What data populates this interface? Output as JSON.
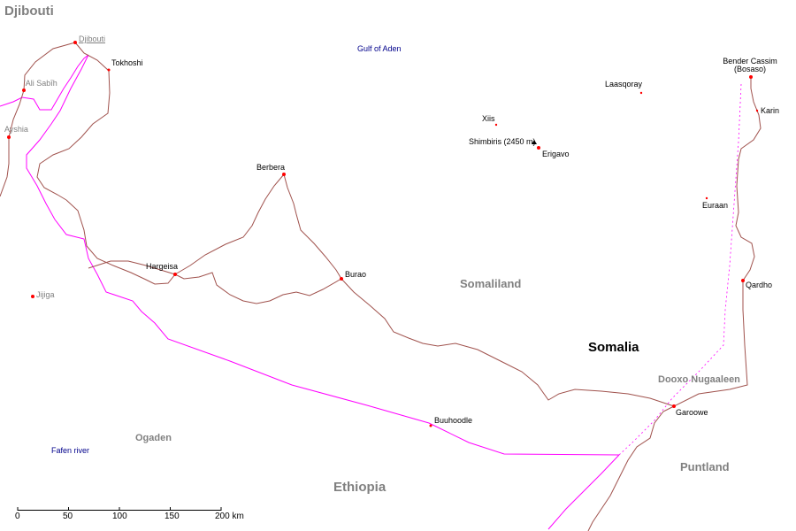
{
  "countries": {
    "djibouti": "Djibouti",
    "somalia": "Somalia",
    "ethiopia": "Ethiopia"
  },
  "regions": {
    "somaliland": "Somaliland",
    "puntland": "Puntland",
    "dooxo": "Dooxo Nugaaleen",
    "ogaden": "Ogaden"
  },
  "water": {
    "gulf": "Gulf of Aden",
    "fafen": "Fafen river"
  },
  "cities": {
    "djibouti": "Djibouti",
    "tokhoshi": "Tokhoshi",
    "ali_sabih": "'Ali Sabīh",
    "ayshia": "Ayshia",
    "berbera": "Berbera",
    "hargeisa": "Hargeisa",
    "burao": "Burao",
    "jijiga": "Jijiga",
    "buuhoodle": "Buuhoodle",
    "xiis": "Xiis",
    "shimbiris": "Shimbiris (2450 m)",
    "erigavo": "Erigavo",
    "laasqoray": "Laasqoray",
    "bosaso_line1": "Bender Cassim",
    "bosaso_line2": "(Bosaso)",
    "karin": "Karin",
    "euraan": "Euraan",
    "qardho": "Qardho",
    "garoowe": "Garoowe"
  },
  "scale": {
    "ticks": [
      "0",
      "50",
      "100",
      "150",
      "200 km"
    ]
  },
  "colors": {
    "road": "#a0524d",
    "border": "#ff00ff",
    "city_dot": "#ff0000",
    "water_text": "#00008b",
    "region_text": "#808080"
  }
}
